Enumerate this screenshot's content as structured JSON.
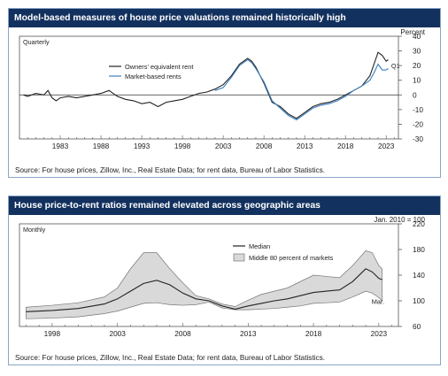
{
  "charts": [
    {
      "title": "Model-based measures of house price valuations remained historically high",
      "source": "Source: For house prices, Zillow, Inc., Real Estate Data; for rent data, Bureau of Labor Statistics.",
      "frequency": "Quarterly",
      "unit": "Percent",
      "end_label": "Q1"
    },
    {
      "title": "House price-to-rent ratios remained elevated across geographic areas",
      "source": "Source: For house prices, Zillow, Inc., Real Estate Data; for rent data, Bureau of Labor Statistics.",
      "frequency": "Monthly",
      "unit": "Jan. 2010 = 100",
      "end_label": "Mar."
    }
  ],
  "chart_data": [
    {
      "type": "line",
      "xlim": [
        1978,
        2024.5
      ],
      "ylim": [
        -30,
        40
      ],
      "yticks": [
        -30,
        -20,
        -10,
        0,
        10,
        20,
        30,
        40
      ],
      "xticks": [
        1983,
        1988,
        1993,
        1998,
        2003,
        2008,
        2013,
        2018,
        2023
      ],
      "grid": false,
      "zero_line": true,
      "legend_position": "top-center",
      "series": [
        {
          "name": "Owners' equivalent rent",
          "color": "#222222",
          "points": [
            [
              1978.5,
              0
            ],
            [
              1979,
              -1
            ],
            [
              1980,
              1
            ],
            [
              1981,
              0
            ],
            [
              1981.5,
              3
            ],
            [
              1982,
              -2
            ],
            [
              1982.5,
              -4
            ],
            [
              1983,
              -2
            ],
            [
              1984,
              -1
            ],
            [
              1985,
              -2
            ],
            [
              1986,
              -1
            ],
            [
              1987,
              0
            ],
            [
              1988,
              1
            ],
            [
              1989,
              3
            ],
            [
              1989.5,
              1
            ],
            [
              1990,
              -1
            ],
            [
              1991,
              -3
            ],
            [
              1992,
              -4
            ],
            [
              1993,
              -6
            ],
            [
              1994,
              -5
            ],
            [
              1995,
              -8
            ],
            [
              1996,
              -5
            ],
            [
              1997,
              -4
            ],
            [
              1998,
              -3
            ],
            [
              1999,
              -1
            ],
            [
              2000,
              1
            ],
            [
              2001,
              2
            ],
            [
              2002,
              4
            ],
            [
              2003,
              7
            ],
            [
              2004,
              13
            ],
            [
              2005,
              21
            ],
            [
              2006,
              25
            ],
            [
              2006.5,
              23
            ],
            [
              2007,
              19
            ],
            [
              2008,
              8
            ],
            [
              2009,
              -5
            ],
            [
              2010,
              -8
            ],
            [
              2011,
              -13
            ],
            [
              2012,
              -16
            ],
            [
              2013,
              -12
            ],
            [
              2014,
              -8
            ],
            [
              2015,
              -6
            ],
            [
              2016,
              -5
            ],
            [
              2017,
              -3
            ],
            [
              2018,
              0
            ],
            [
              2019,
              3
            ],
            [
              2020,
              6
            ],
            [
              2021,
              13
            ],
            [
              2021.5,
              21
            ],
            [
              2022,
              29
            ],
            [
              2022.5,
              27
            ],
            [
              2023,
              23
            ],
            [
              2023.25,
              24
            ]
          ]
        },
        {
          "name": "Market-based rents",
          "color": "#3a80c3",
          "points": [
            [
              2002,
              3
            ],
            [
              2003,
              5
            ],
            [
              2004,
              12
            ],
            [
              2005,
              20
            ],
            [
              2006,
              24
            ],
            [
              2006.5,
              22
            ],
            [
              2007,
              18
            ],
            [
              2008,
              9
            ],
            [
              2009,
              -4
            ],
            [
              2010,
              -9
            ],
            [
              2011,
              -14
            ],
            [
              2012,
              -17
            ],
            [
              2013,
              -13
            ],
            [
              2014,
              -9
            ],
            [
              2015,
              -7
            ],
            [
              2016,
              -6
            ],
            [
              2017,
              -4
            ],
            [
              2018,
              -1
            ],
            [
              2019,
              3
            ],
            [
              2020,
              6
            ],
            [
              2021,
              10
            ],
            [
              2021.5,
              15
            ],
            [
              2022,
              21
            ],
            [
              2022.5,
              17
            ],
            [
              2023,
              17
            ],
            [
              2023.25,
              18
            ]
          ]
        }
      ]
    },
    {
      "type": "area",
      "xlim": [
        1995.5,
        2024.5
      ],
      "ylim": [
        60,
        220
      ],
      "yticks": [
        60,
        100,
        140,
        180,
        220
      ],
      "xticks": [
        1998,
        2003,
        2008,
        2013,
        2018,
        2023
      ],
      "grid": false,
      "legend_position": "top-center",
      "band": {
        "name": "Middle 80 percent of markets",
        "color": "#d9d9d9",
        "upper": [
          [
            1996,
            90
          ],
          [
            1998,
            93
          ],
          [
            2000,
            97
          ],
          [
            2002,
            106
          ],
          [
            2003,
            120
          ],
          [
            2004,
            150
          ],
          [
            2005,
            175
          ],
          [
            2006,
            175
          ],
          [
            2007,
            150
          ],
          [
            2008,
            128
          ],
          [
            2009,
            108
          ],
          [
            2010,
            103
          ],
          [
            2011,
            95
          ],
          [
            2012,
            91
          ],
          [
            2013,
            101
          ],
          [
            2014,
            110
          ],
          [
            2015,
            115
          ],
          [
            2016,
            120
          ],
          [
            2017,
            130
          ],
          [
            2018,
            140
          ],
          [
            2019,
            138
          ],
          [
            2020,
            136
          ],
          [
            2021,
            155
          ],
          [
            2022,
            178
          ],
          [
            2022.5,
            175
          ],
          [
            2023,
            155
          ],
          [
            2023.25,
            150
          ]
        ],
        "lower": [
          [
            1996,
            72
          ],
          [
            1998,
            73
          ],
          [
            2000,
            75
          ],
          [
            2002,
            80
          ],
          [
            2003,
            84
          ],
          [
            2004,
            90
          ],
          [
            2005,
            96
          ],
          [
            2006,
            97
          ],
          [
            2007,
            94
          ],
          [
            2008,
            93
          ],
          [
            2009,
            94
          ],
          [
            2010,
            98
          ],
          [
            2011,
            89
          ],
          [
            2012,
            86
          ],
          [
            2013,
            86
          ],
          [
            2014,
            87
          ],
          [
            2015,
            88
          ],
          [
            2016,
            90
          ],
          [
            2017,
            92
          ],
          [
            2018,
            96
          ],
          [
            2019,
            97
          ],
          [
            2020,
            98
          ],
          [
            2021,
            106
          ],
          [
            2022,
            115
          ],
          [
            2022.5,
            112
          ],
          [
            2023,
            105
          ],
          [
            2023.25,
            100
          ]
        ]
      },
      "series": [
        {
          "name": "Median",
          "color": "#222222",
          "points": [
            [
              1996,
              83
            ],
            [
              1998,
              85
            ],
            [
              2000,
              88
            ],
            [
              2002,
              95
            ],
            [
              2003,
              103
            ],
            [
              2004,
              115
            ],
            [
              2005,
              127
            ],
            [
              2006,
              132
            ],
            [
              2007,
              125
            ],
            [
              2008,
              112
            ],
            [
              2009,
              103
            ],
            [
              2010,
              100
            ],
            [
              2011,
              92
            ],
            [
              2012,
              87
            ],
            [
              2013,
              92
            ],
            [
              2014,
              96
            ],
            [
              2015,
              100
            ],
            [
              2016,
              103
            ],
            [
              2017,
              108
            ],
            [
              2018,
              113
            ],
            [
              2019,
              115
            ],
            [
              2020,
              117
            ],
            [
              2021,
              130
            ],
            [
              2022,
              150
            ],
            [
              2022.5,
              145
            ],
            [
              2023,
              135
            ],
            [
              2023.25,
              133
            ]
          ]
        }
      ]
    }
  ]
}
